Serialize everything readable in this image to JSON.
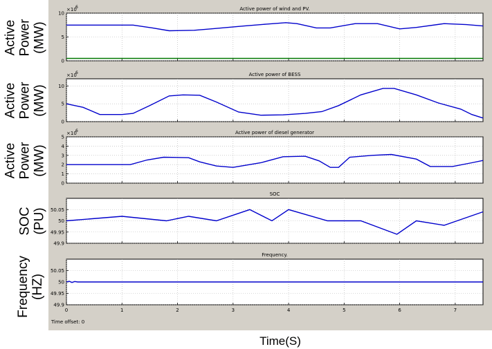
{
  "xlabel": "Time(S)",
  "time_offset_label": "Time offset:",
  "time_offset_value": "0",
  "colors": {
    "trace": "#0000cc",
    "trace2": "#007700",
    "axes_bg": "#ffffff",
    "window_bg": "#d4d0c8",
    "grid": "#b0b0b0"
  },
  "chart_data": [
    {
      "type": "line",
      "title": "Active power of wind and PV.",
      "ylabel_lines": [
        "Active",
        "Power",
        "(MW)"
      ],
      "y_exponent": "6",
      "xlim": [
        0,
        7.5
      ],
      "ylim": [
        0,
        10
      ],
      "yticks": [
        "0",
        "5",
        "10"
      ],
      "series": [
        {
          "values": [
            [
              0,
              7.5
            ],
            [
              1.2,
              7.5
            ],
            [
              1.55,
              6.9
            ],
            [
              1.85,
              6.3
            ],
            [
              2.3,
              6.4
            ],
            [
              2.6,
              6.7
            ],
            [
              3.2,
              7.3
            ],
            [
              3.6,
              7.7
            ],
            [
              3.95,
              8.0
            ],
            [
              4.15,
              7.8
            ],
            [
              4.5,
              6.9
            ],
            [
              4.75,
              6.9
            ],
            [
              5.2,
              7.8
            ],
            [
              5.6,
              7.8
            ],
            [
              6.0,
              6.7
            ],
            [
              6.3,
              7.0
            ],
            [
              6.8,
              7.8
            ],
            [
              7.2,
              7.6
            ],
            [
              7.5,
              7.3
            ]
          ]
        },
        {
          "values": [
            [
              0,
              0.5
            ],
            [
              7.5,
              0.5
            ]
          ]
        }
      ]
    },
    {
      "type": "line",
      "title": "Active power of BESS",
      "ylabel_lines": [
        "Active",
        "Power",
        "(MW)"
      ],
      "y_exponent": "6",
      "xlim": [
        0,
        7.5
      ],
      "ylim": [
        0,
        12
      ],
      "yticks": [
        "0",
        "5",
        "10"
      ],
      "series": [
        {
          "values": [
            [
              0,
              5
            ],
            [
              0.3,
              4
            ],
            [
              0.6,
              2
            ],
            [
              1.0,
              2
            ],
            [
              1.2,
              2.3
            ],
            [
              1.5,
              4.5
            ],
            [
              1.85,
              7.2
            ],
            [
              2.1,
              7.5
            ],
            [
              2.4,
              7.4
            ],
            [
              2.7,
              5.5
            ],
            [
              3.1,
              2.7
            ],
            [
              3.5,
              1.8
            ],
            [
              3.9,
              1.9
            ],
            [
              4.3,
              2.3
            ],
            [
              4.6,
              2.8
            ],
            [
              4.9,
              4.5
            ],
            [
              5.3,
              7.5
            ],
            [
              5.7,
              9.3
            ],
            [
              5.9,
              9.3
            ],
            [
              6.3,
              7.5
            ],
            [
              6.7,
              5.2
            ],
            [
              7.1,
              3.5
            ],
            [
              7.3,
              2
            ],
            [
              7.5,
              1.0
            ]
          ]
        }
      ]
    },
    {
      "type": "line",
      "title": "Active power of diesel generator",
      "ylabel_lines": [
        "Active",
        "Power",
        "(MW)"
      ],
      "y_exponent": "6",
      "xlim": [
        0,
        7.5
      ],
      "ylim": [
        0,
        5
      ],
      "yticks": [
        "0",
        "1",
        "2",
        "3",
        "4",
        "5"
      ],
      "series": [
        {
          "values": [
            [
              0,
              2
            ],
            [
              1.15,
              2
            ],
            [
              1.45,
              2.5
            ],
            [
              1.75,
              2.8
            ],
            [
              2.2,
              2.75
            ],
            [
              2.4,
              2.3
            ],
            [
              2.7,
              1.85
            ],
            [
              3.0,
              1.7
            ],
            [
              3.5,
              2.2
            ],
            [
              3.9,
              2.85
            ],
            [
              4.3,
              2.9
            ],
            [
              4.55,
              2.4
            ],
            [
              4.75,
              1.7
            ],
            [
              4.9,
              1.7
            ],
            [
              5.1,
              2.8
            ],
            [
              5.5,
              3.0
            ],
            [
              5.85,
              3.1
            ],
            [
              6.3,
              2.6
            ],
            [
              6.55,
              1.8
            ],
            [
              6.95,
              1.8
            ],
            [
              7.3,
              2.2
            ],
            [
              7.5,
              2.45
            ]
          ]
        }
      ]
    },
    {
      "type": "line",
      "title": "SOC",
      "ylabel_lines": [
        "SOC",
        "(PU)"
      ],
      "xlim": [
        0,
        7.5
      ],
      "ylim": [
        49.9,
        50.1
      ],
      "yticks": [
        "49.9",
        "49.95",
        "50",
        "50.05"
      ],
      "series": [
        {
          "values": [
            [
              0,
              50
            ],
            [
              1.0,
              50.02
            ],
            [
              1.8,
              50
            ],
            [
              2.2,
              50.02
            ],
            [
              2.7,
              50
            ],
            [
              3.3,
              50.05
            ],
            [
              3.7,
              50
            ],
            [
              4.0,
              50.05
            ],
            [
              4.7,
              50
            ],
            [
              5.3,
              50
            ],
            [
              5.95,
              49.94
            ],
            [
              6.3,
              50
            ],
            [
              6.8,
              49.98
            ],
            [
              7.5,
              50.04
            ]
          ]
        }
      ]
    },
    {
      "type": "line",
      "title": "Frequency.",
      "ylabel_lines": [
        "Frequency",
        "(HZ)"
      ],
      "xlim": [
        0,
        7.5
      ],
      "ylim": [
        49.9,
        50.1
      ],
      "yticks": [
        "49.9",
        "49.95",
        "50",
        "50.05"
      ],
      "xticks": [
        "0",
        "1",
        "2",
        "3",
        "4",
        "5",
        "6",
        "7"
      ],
      "series": [
        {
          "values": [
            [
              0,
              50
            ],
            [
              0.05,
              50.003
            ],
            [
              0.1,
              49.998
            ],
            [
              0.15,
              50.002
            ],
            [
              0.2,
              50
            ],
            [
              7.5,
              50
            ]
          ]
        }
      ]
    }
  ]
}
